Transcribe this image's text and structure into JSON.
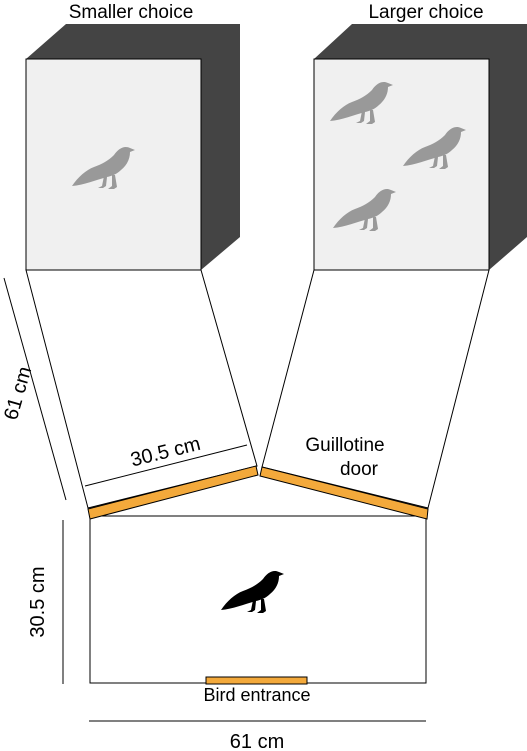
{
  "labels": {
    "smaller_choice": "Smaller choice",
    "larger_choice": "Larger choice",
    "arm_length": "61 cm",
    "door_width": "30.5 cm",
    "guillotine_line1": "Guillotine",
    "guillotine_line2": "door",
    "start_depth": "30.5 cm",
    "start_width": "61 cm",
    "bird_entrance": "Bird entrance"
  },
  "smaller_choice_bird_count": 1,
  "larger_choice_bird_count": 3,
  "colors": {
    "door": "#f3a93b",
    "box_front": "#f0f0f0",
    "box_shadow": "#444444",
    "gray_bird": "#999999",
    "subject_bird": "#000000"
  },
  "icons": {
    "choice_bird": "crow-silhouette-gray",
    "subject_bird": "crow-silhouette-black"
  }
}
